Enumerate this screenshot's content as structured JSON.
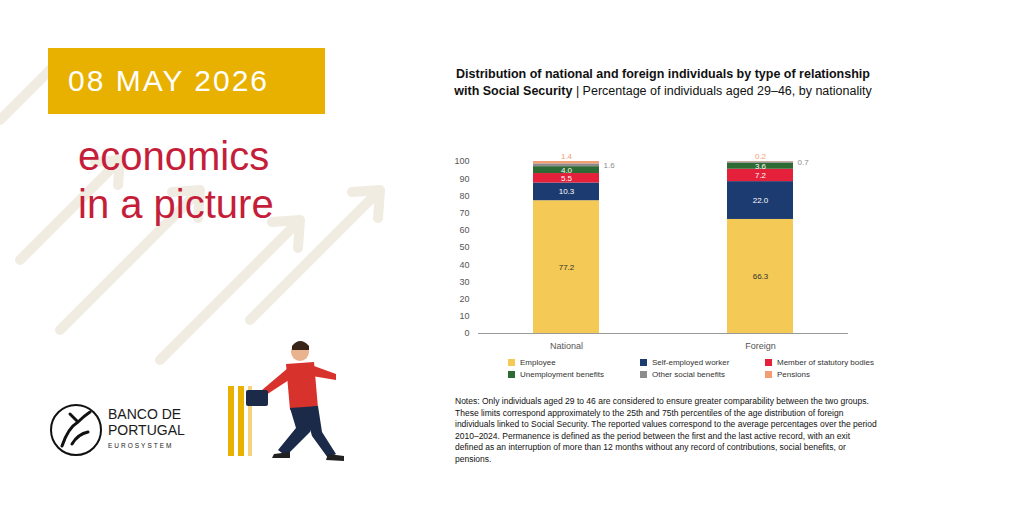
{
  "header": {
    "date": "08 MAY 2026",
    "heading": [
      "economics",
      "in a picture"
    ]
  },
  "logo": {
    "name": "BANCO DE PORTUGAL",
    "tagline": "EUROSYSTEM"
  },
  "chart_data": {
    "type": "bar",
    "title": "Distribution of national and foreign individuals by type of relationship with Social Security",
    "subtitle": "| Percentage of individuals aged 29–46, by nationality",
    "categories": [
      "National",
      "Foreign"
    ],
    "series": [
      {
        "name": "Employee",
        "color": "#F4C955",
        "values": [
          77.2,
          66.3
        ],
        "value_labels": [
          "77.2",
          "66.3"
        ]
      },
      {
        "name": "Self-employed worker",
        "color": "#1C3B70",
        "values": [
          10.3,
          22.0
        ],
        "value_labels": [
          "10.3",
          "22.0"
        ]
      },
      {
        "name": "Member of statutory bodies",
        "color": "#E4203A",
        "values": [
          5.5,
          7.2
        ],
        "value_labels": [
          "5.5",
          "7.2"
        ]
      },
      {
        "name": "Unemployment benefits",
        "color": "#2E6A33",
        "values": [
          4.0,
          3.6
        ],
        "value_labels": [
          "4.0",
          "3.6"
        ]
      },
      {
        "name": "Other social benefits",
        "color": "#8C8C8C",
        "values": [
          1.6,
          0.7
        ],
        "value_labels": [
          "1.6",
          "0.7"
        ]
      },
      {
        "name": "Pensions",
        "color": "#F29E72",
        "values": [
          1.4,
          0.2
        ],
        "value_labels": [
          "1.4",
          "0.2"
        ]
      }
    ],
    "ylim": [
      0,
      100
    ],
    "yticks": [
      0,
      10,
      20,
      30,
      40,
      50,
      60,
      70,
      80,
      90,
      100
    ],
    "stacked": true,
    "data_labels": true,
    "legend": "bottom"
  },
  "notes": "Notes: Only individuals aged 29 to 46 are considered to ensure greater comparability between the two groups. These limits correspond approximately to the 25th and 75th percentiles of the age distribution of foreign individuals linked to Social Security. The reported values correspond to the average percentages over the period 2010–2024. Permanence is defined as the period between the first and the last active record, with an exit defined as an interruption of more than 12 months without any record of contributions, social benefits, or pensions."
}
